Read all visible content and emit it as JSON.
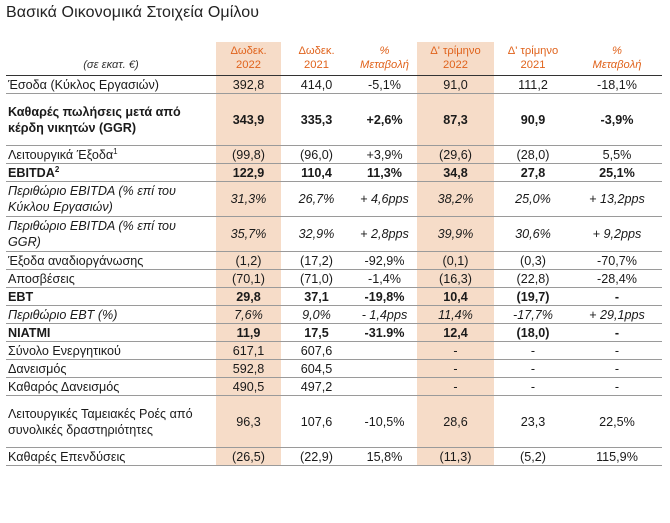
{
  "title": "Βασικά Οικονομικά Στοιχεία Ομίλου",
  "header": {
    "unit": "(σε εκατ. €)",
    "cols": [
      {
        "line1": "Δωδεκ.",
        "line2": "2022"
      },
      {
        "line1": "Δωδεκ.",
        "line2": "2021"
      },
      {
        "line1": "%",
        "line2": "Μεταβολή"
      },
      {
        "line1": "Δ' τρίμηνο",
        "line2": "2022"
      },
      {
        "line1": "Δ' τρίμηνο",
        "line2": "2021"
      },
      {
        "line1": "%",
        "line2": "Μεταβολή"
      }
    ]
  },
  "rows": [
    {
      "label": "Έσοδα (Κύκλος Εργασιών)",
      "sup": "",
      "style": "",
      "lines": 1,
      "values": [
        "392,8",
        "414,0",
        "-5,1%",
        "91,0",
        "111,2",
        "-18,1%"
      ]
    },
    {
      "label": "Καθαρές πωλήσεις μετά από κέρδη νικητών (GGR)",
      "sup": "",
      "style": "bold",
      "lines": 3,
      "values": [
        "343,9",
        "335,3",
        "+2,6%",
        "87,3",
        "90,9",
        "-3,9%"
      ]
    },
    {
      "label": "Λειτουργικά Έξοδα",
      "sup": "1",
      "style": "",
      "lines": 1,
      "values": [
        "(99,8)",
        "(96,0)",
        "+3,9%",
        "(29,6)",
        "(28,0)",
        "5,5%"
      ]
    },
    {
      "label": "EBITDA",
      "sup": "2",
      "style": "bold",
      "lines": 1,
      "values": [
        "122,9",
        "110,4",
        "11,3%",
        "34,8",
        "27,8",
        "25,1%"
      ]
    },
    {
      "label": "Περιθώριο EBITDA (% επί του Κύκλου Εργασιών)",
      "sup": "",
      "style": "ital",
      "lines": 2,
      "values": [
        "31,3%",
        "26,7%",
        "+ 4,6pps",
        "38,2%",
        "25,0%",
        "+ 13,2pps"
      ]
    },
    {
      "label": "Περιθώριο EBITDA (% επί του GGR)",
      "sup": "",
      "style": "ital",
      "lines": 2,
      "values": [
        "35,7%",
        "32,9%",
        "+ 2,8pps",
        "39,9%",
        "30,6%",
        "+ 9,2pps"
      ]
    },
    {
      "label": "Έξοδα αναδιοργάνωσης",
      "sup": "",
      "style": "",
      "lines": 1,
      "values": [
        "(1,2)",
        "(17,2)",
        "-92,9%",
        "(0,1)",
        "(0,3)",
        "-70,7%"
      ]
    },
    {
      "label": "Αποσβέσεις",
      "sup": "",
      "style": "",
      "lines": 1,
      "values": [
        "(70,1)",
        "(71,0)",
        "-1,4%",
        "(16,3)",
        "(22,8)",
        "-28,4%"
      ]
    },
    {
      "label": "EBT",
      "sup": "",
      "style": "bold",
      "lines": 1,
      "values": [
        "29,8",
        "37,1",
        "-19,8%",
        "10,4",
        "(19,7)",
        "-"
      ]
    },
    {
      "label": "Περιθώριο EBT (%)",
      "sup": "",
      "style": "ital",
      "lines": 1,
      "values": [
        "7,6%",
        "9,0%",
        "- 1,4pps",
        "11,4%",
        "-17,7%",
        "+ 29,1pps"
      ]
    },
    {
      "label": "NIATMI",
      "sup": "",
      "style": "bold",
      "lines": 1,
      "values": [
        "11,9",
        "17,5",
        "-31.9%",
        "12,4",
        "(18,0)",
        "-"
      ]
    },
    {
      "label": "Σύνολο Ενεργητικού",
      "sup": "",
      "style": "",
      "lines": 1,
      "values": [
        "617,1",
        "607,6",
        "",
        "-",
        "-",
        "-"
      ]
    },
    {
      "label": "Δανεισμός",
      "sup": "",
      "style": "",
      "lines": 1,
      "values": [
        "592,8",
        "604,5",
        "",
        "-",
        "-",
        "-"
      ]
    },
    {
      "label": "Καθαρός Δανεισμός",
      "sup": "",
      "style": "",
      "lines": 1,
      "values": [
        "490,5",
        "497,2",
        "",
        "-",
        "-",
        "-"
      ]
    },
    {
      "label": "Λειτουργικές Ταμειακές Ροές από συνολικές δραστηριότητες",
      "sup": "",
      "style": "",
      "lines": 3,
      "values": [
        "96,3",
        "107,6",
        "-10,5%",
        "28,6",
        "23,3",
        "22,5%"
      ]
    },
    {
      "label": "Καθαρές Επενδύσεις",
      "sup": "",
      "style": "",
      "lines": 1,
      "values": [
        "(26,5)",
        "(22,9)",
        "15,8%",
        "(11,3)",
        "(5,2)",
        "115,9%"
      ]
    }
  ]
}
